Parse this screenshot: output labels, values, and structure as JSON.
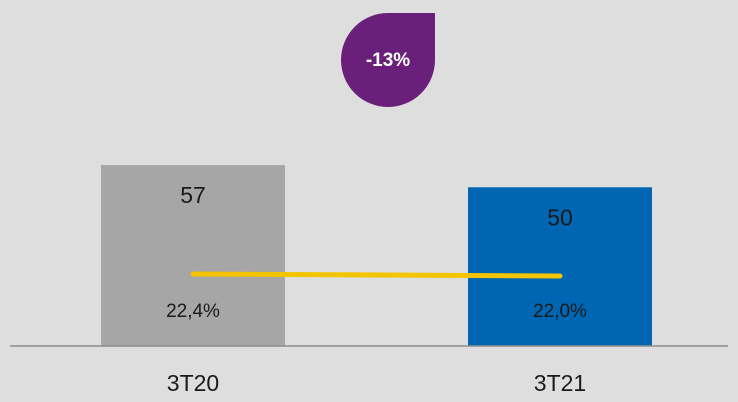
{
  "chart_data": {
    "type": "bar",
    "categories": [
      "3T20",
      "3T21"
    ],
    "series": [
      {
        "type": "bar",
        "colors": [
          "#a6a6a6",
          "#0066b3"
        ],
        "values": [
          57,
          50
        ]
      },
      {
        "type": "line",
        "axis": "y2",
        "color": "#f5c400",
        "values": [
          22.4,
          22.0
        ],
        "value_labels": [
          "22,4%",
          "22,0%"
        ]
      }
    ],
    "ylim": [
      0,
      109
    ],
    "y2lim": [
      8,
      77.2
    ],
    "annotation": "-13%",
    "annotation_color": "#6a1f7a"
  }
}
